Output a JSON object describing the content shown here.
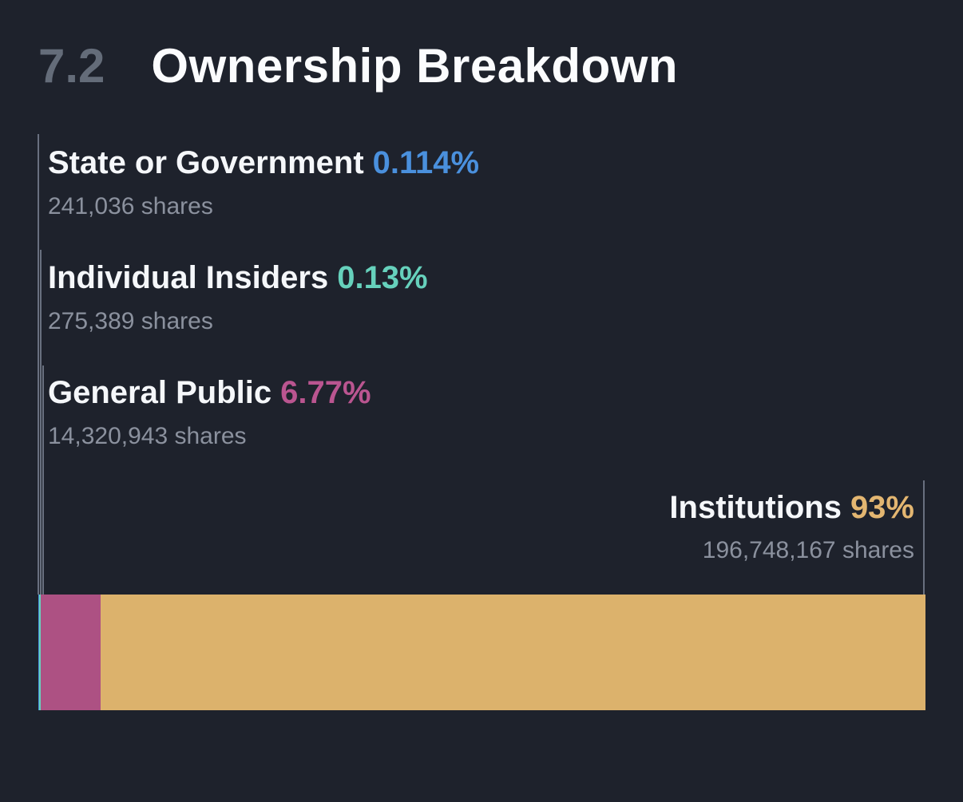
{
  "header": {
    "section_number": "7.2",
    "title": "Ownership Breakdown"
  },
  "colors": {
    "background": "#1e222c",
    "title_text": "#fbfcfe",
    "section_number_text": "#646c79",
    "label_text": "#f5f7fa",
    "shares_text": "#8b919e",
    "leader_line": "#69707f"
  },
  "chart_data": {
    "type": "bar",
    "variant": "horizontal-stacked-single-bar",
    "title": "Ownership Breakdown",
    "grid": false,
    "axes_visible": false,
    "legend_position": "inline-labels-with-leader-lines",
    "series": [
      {
        "name": "State or Government",
        "percent": 0.114,
        "percent_label": "0.114%",
        "shares_label": "241,036 shares",
        "text_color": "#4a90dd",
        "bar_color": "#4a90dd",
        "label_side": "left"
      },
      {
        "name": "Individual Insiders",
        "percent": 0.13,
        "percent_label": "0.13%",
        "shares_label": "275,389 shares",
        "text_color": "#66d1bc",
        "bar_color": "#66d1bc",
        "label_side": "left"
      },
      {
        "name": "General Public",
        "percent": 6.77,
        "percent_label": "6.77%",
        "shares_label": "14,320,943 shares",
        "text_color": "#ba5590",
        "bar_color": "#ad5183",
        "label_side": "left"
      },
      {
        "name": "Institutions",
        "percent": 93,
        "percent_label": "93%",
        "shares_label": "196,748,167 shares",
        "text_color": "#e3b671",
        "bar_color": "#dcb26c",
        "label_side": "right"
      }
    ]
  }
}
